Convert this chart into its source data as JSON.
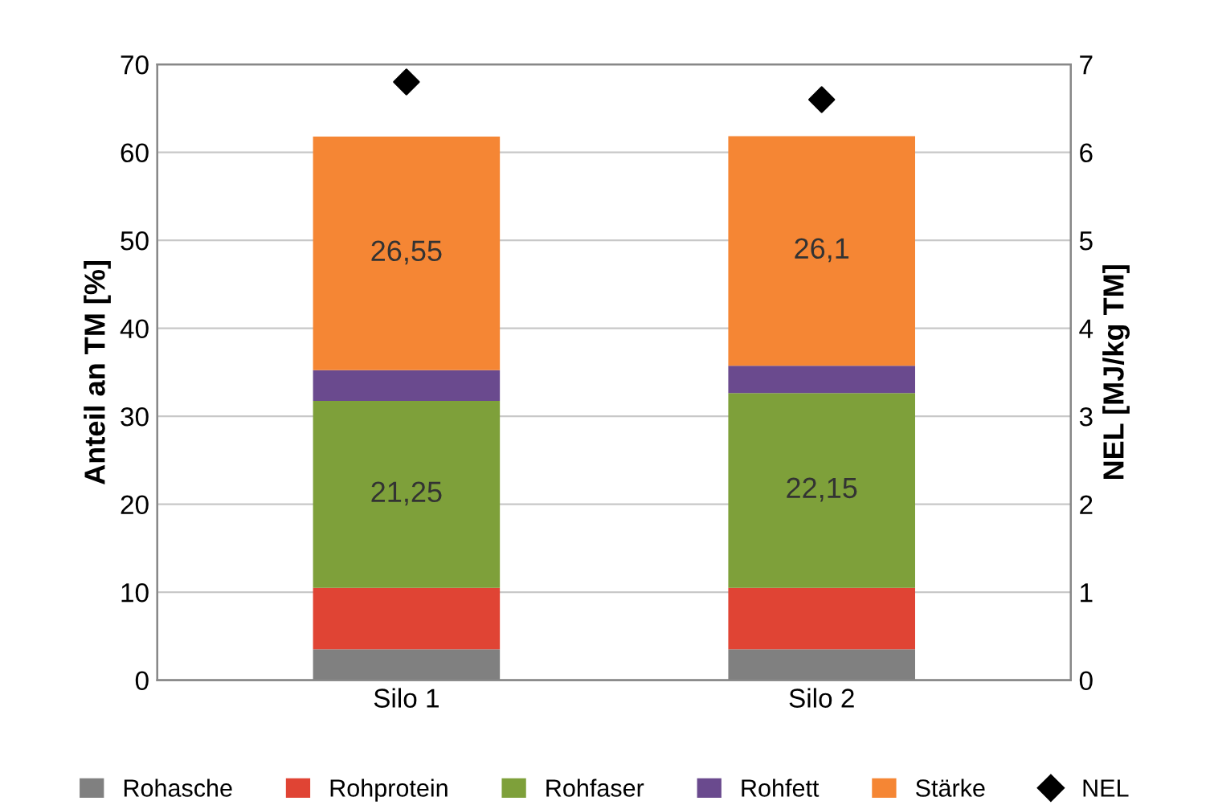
{
  "chart_data": {
    "type": "bar",
    "stacked": true,
    "categories": [
      "Silo 1",
      "Silo 2"
    ],
    "ylabel": "Anteil an TM [%]",
    "y2label": "NEL [MJ/kg TM]",
    "ylim": [
      0,
      70
    ],
    "yticks": [
      0,
      10,
      20,
      30,
      40,
      50,
      60,
      70
    ],
    "y2lim": [
      0,
      7
    ],
    "y2ticks": [
      0,
      1,
      2,
      3,
      4,
      5,
      6,
      7
    ],
    "grid": "y",
    "legend": "bottom",
    "series": [
      {
        "name": "Rohasche",
        "color": "#808080",
        "values": [
          3.5,
          3.5
        ]
      },
      {
        "name": "Rohprotein",
        "color": "#e04434",
        "values": [
          7.0,
          7.0
        ]
      },
      {
        "name": "Rohfaser",
        "color": "#7ea03a",
        "values": [
          21.25,
          22.15
        ],
        "value_labels": [
          "21,25",
          "22,15"
        ]
      },
      {
        "name": "Rohfett",
        "color": "#6a4a8e",
        "values": [
          3.5,
          3.1
        ]
      },
      {
        "name": "Stärke",
        "color": "#f58634",
        "values": [
          26.55,
          26.1
        ],
        "value_labels": [
          "26,55",
          "26,1"
        ]
      },
      {
        "name": "NEL",
        "type": "scatter",
        "axis": "y2",
        "marker": "diamond",
        "color": "#000000",
        "values": [
          6.8,
          6.6
        ]
      }
    ]
  }
}
